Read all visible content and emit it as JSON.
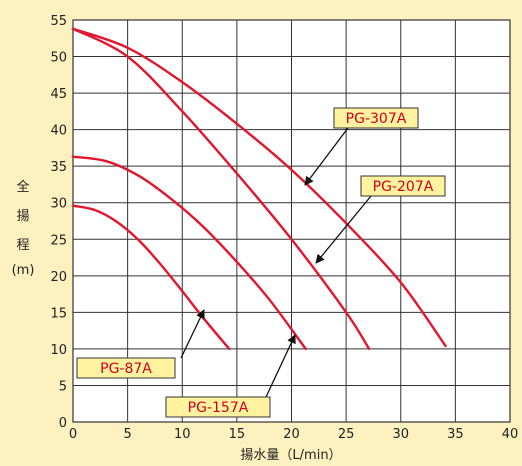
{
  "colors": {
    "background": "#fdf1bf",
    "plot_area": "#ffffff",
    "grid": "#333333",
    "curve": "#e0172e",
    "label_box": "#fff3a0",
    "label_text": "#d4001a",
    "arrow": "#111111"
  },
  "chart_data": {
    "type": "line",
    "title": "",
    "xlabel": "揚水量（L/min）",
    "ylabel": [
      "全",
      "揚",
      "程",
      "(m)"
    ],
    "xlim": [
      0,
      40
    ],
    "ylim": [
      0,
      55
    ],
    "x_ticks": [
      "0",
      "5",
      "10",
      "15",
      "20",
      "25",
      "30",
      "35",
      "40"
    ],
    "y_ticks": [
      "0",
      "5",
      "10",
      "15",
      "20",
      "25",
      "30",
      "35",
      "40",
      "45",
      "50",
      "55"
    ],
    "grid": true,
    "series": [
      {
        "name": "PG-87A",
        "x": [
          0,
          2,
          4,
          6,
          8,
          10,
          12,
          14.3
        ],
        "y": [
          29.6,
          29.0,
          27.4,
          24.9,
          21.6,
          17.9,
          14.1,
          10.0
        ]
      },
      {
        "name": "PG-157A",
        "x": [
          0,
          3,
          6,
          9,
          12,
          15,
          18,
          21.3
        ],
        "y": [
          36.3,
          35.7,
          33.7,
          30.5,
          26.6,
          21.9,
          16.7,
          10.0
        ]
      },
      {
        "name": "PG-207A",
        "x": [
          0,
          5,
          10,
          15,
          20,
          25,
          27.1
        ],
        "y": [
          53.8,
          50.0,
          42.5,
          34.0,
          25.0,
          15.0,
          10.0
        ]
      },
      {
        "name": "PG-307A",
        "x": [
          0,
          5,
          10,
          15,
          20,
          25,
          30,
          34.1
        ],
        "y": [
          53.8,
          51.2,
          46.5,
          40.8,
          34.5,
          27.2,
          19.1,
          10.4
        ]
      }
    ],
    "annotations": [
      {
        "text": "PG-307A",
        "series": "PG-307A"
      },
      {
        "text": "PG-207A",
        "series": "PG-207A"
      },
      {
        "text": "PG-87A",
        "series": "PG-87A"
      },
      {
        "text": "PG-157A",
        "series": "PG-157A"
      }
    ]
  }
}
